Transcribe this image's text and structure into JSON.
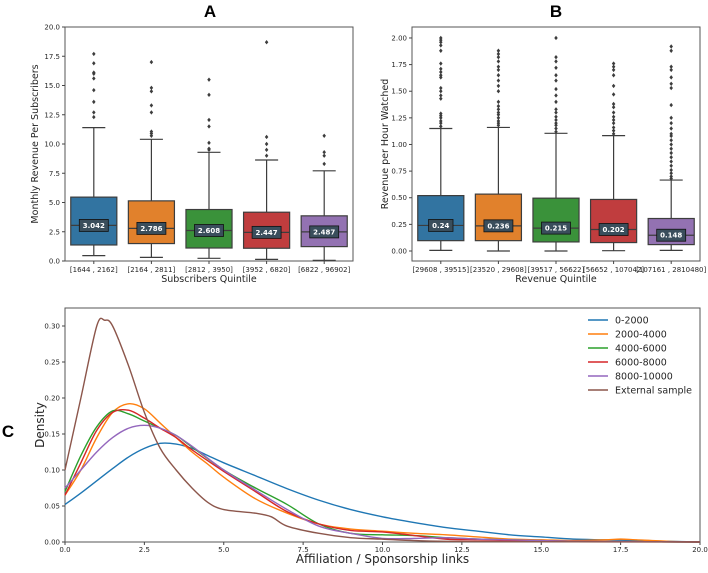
{
  "chart_data": [
    {
      "type": "boxplot",
      "panel_label": "A",
      "xlabel": "Subscribers Quintile",
      "ylabel": "Monthly Revenue Per Subscribers",
      "ylim": [
        0,
        20
      ],
      "yticks": [
        "0.0",
        "2.5",
        "5.0",
        "7.5",
        "10.0",
        "12.5",
        "15.0",
        "17.5",
        "20.0"
      ],
      "ytick_values": [
        0,
        2.5,
        5,
        7.5,
        10,
        12.5,
        15,
        17.5,
        20
      ],
      "categories": [
        "[1644 , 2162]",
        "[2164 , 2811]",
        "[2812 , 3950]",
        "[3952 , 6820]",
        "[6822 , 96902]"
      ],
      "median_labels": [
        "3.042",
        "2.786",
        "2.608",
        "2.447",
        "2.487"
      ],
      "colors": [
        "#3274a1",
        "#e1812c",
        "#3a923a",
        "#c03d3e",
        "#9372b2"
      ],
      "boxes": [
        {
          "whislo": 0.46,
          "q1": 1.37,
          "med": 3.042,
          "q3": 5.46,
          "whishi": 11.4,
          "fliers": [
            12.3,
            12.7,
            13.6,
            14.6,
            15.6,
            16.0,
            16.1,
            16.9,
            17.7
          ]
        },
        {
          "whislo": 0.31,
          "q1": 1.49,
          "med": 2.786,
          "q3": 5.14,
          "whishi": 10.4,
          "fliers": [
            10.7,
            10.9,
            11.06,
            12.7,
            13.3,
            14.5,
            14.8,
            17.0
          ]
        },
        {
          "whislo": 0.23,
          "q1": 1.11,
          "med": 2.608,
          "q3": 4.4,
          "whishi": 9.29,
          "fliers": [
            9.5,
            9.6,
            10.1,
            11.5,
            12.06,
            14.2,
            15.5
          ]
        },
        {
          "whislo": 0.14,
          "q1": 1.09,
          "med": 2.447,
          "q3": 4.17,
          "whishi": 8.63,
          "fliers": [
            9.0,
            9.5,
            10.0,
            10.6,
            18.7
          ]
        },
        {
          "whislo": 0.06,
          "q1": 1.23,
          "med": 2.487,
          "q3": 3.86,
          "whishi": 7.71,
          "fliers": [
            8.3,
            9.0,
            9.3,
            10.7
          ]
        }
      ]
    },
    {
      "type": "boxplot",
      "panel_label": "B",
      "xlabel": "Revenue Quintile",
      "ylabel": "Revenue per Hour Watched",
      "ylim": [
        -0.094,
        2.103
      ],
      "yticks": [
        "0.00",
        "0.25",
        "0.50",
        "0.75",
        "1.00",
        "1.25",
        "1.50",
        "1.75",
        "2.00"
      ],
      "ytick_values": [
        0,
        0.25,
        0.5,
        0.75,
        1,
        1.25,
        1.5,
        1.75,
        2
      ],
      "categories": [
        "[29608 , 39515]",
        "[23520 , 29608]",
        "[39517 , 56622]",
        "[56652 , 107042]",
        "[107161 , 2810480]"
      ],
      "median_labels": [
        "0.24",
        "0.236",
        "0.215",
        "0.202",
        "0.148"
      ],
      "colors": [
        "#3274a1",
        "#e1812c",
        "#3a923a",
        "#c03d3e",
        "#9372b2"
      ],
      "boxes": [
        {
          "whislo": 0.006,
          "q1": 0.097,
          "med": 0.24,
          "q3": 0.52,
          "whishi": 1.15,
          "fliers": [
            1.17,
            1.2,
            1.22,
            1.25,
            1.27,
            1.29,
            1.43,
            1.46,
            1.5,
            1.53,
            1.63,
            1.65,
            1.68,
            1.71,
            1.76,
            1.88,
            1.93,
            1.96,
            1.98,
            2.0
          ]
        },
        {
          "whislo": 0.0,
          "q1": 0.097,
          "med": 0.236,
          "q3": 0.534,
          "whishi": 1.16,
          "fliers": [
            1.18,
            1.2,
            1.22,
            1.25,
            1.28,
            1.3,
            1.33,
            1.36,
            1.4,
            1.5,
            1.55,
            1.6,
            1.65,
            1.7,
            1.73,
            1.78,
            1.82,
            1.85,
            1.88
          ]
        },
        {
          "whislo": 0.0,
          "q1": 0.085,
          "med": 0.215,
          "q3": 0.496,
          "whishi": 1.105,
          "fliers": [
            1.12,
            1.15,
            1.18,
            1.2,
            1.23,
            1.26,
            1.3,
            1.33,
            1.4,
            1.46,
            1.52,
            1.6,
            1.65,
            1.72,
            1.78,
            1.82,
            2.0
          ]
        },
        {
          "whislo": 0.003,
          "q1": 0.079,
          "med": 0.202,
          "q3": 0.484,
          "whishi": 1.083,
          "fliers": [
            1.1,
            1.13,
            1.16,
            1.2,
            1.23,
            1.26,
            1.3,
            1.35,
            1.38,
            1.47,
            1.55,
            1.65,
            1.7,
            1.73,
            1.76
          ]
        },
        {
          "whislo": 0.006,
          "q1": 0.06,
          "med": 0.148,
          "q3": 0.305,
          "whishi": 0.666,
          "fliers": [
            0.68,
            0.7,
            0.73,
            0.76,
            0.8,
            0.84,
            0.88,
            0.92,
            0.96,
            1.0,
            1.04,
            1.08,
            1.1,
            1.15,
            1.2,
            1.25,
            1.37,
            1.53,
            1.57,
            1.63,
            1.7,
            1.73,
            1.88,
            1.92
          ]
        }
      ]
    },
    {
      "type": "line",
      "panel_label": "C",
      "xlabel": "Affiliation / Sponsorship links",
      "ylabel": "Density",
      "xlim": [
        0,
        20
      ],
      "ylim": [
        0,
        0.325
      ],
      "xticks": [
        "0.0",
        "2.5",
        "5.0",
        "7.5",
        "10.0",
        "12.5",
        "15.0",
        "17.5",
        "20.0"
      ],
      "xtick_values": [
        0,
        2.5,
        5,
        7.5,
        10,
        12.5,
        15,
        17.5,
        20
      ],
      "yticks": [
        "0.00",
        "0.05",
        "0.10",
        "0.15",
        "0.20",
        "0.25",
        "0.30"
      ],
      "ytick_values": [
        0,
        0.05,
        0.1,
        0.15,
        0.2,
        0.25,
        0.3
      ],
      "legend_position": "top-right",
      "series": [
        {
          "name": "0-2000",
          "color": "#1f77b4",
          "x": [
            0,
            0.5,
            1,
            1.5,
            2,
            2.5,
            3,
            3.5,
            4,
            4.5,
            5,
            6,
            7,
            8,
            9,
            10,
            11,
            12,
            13,
            14,
            15,
            16,
            17,
            18,
            19,
            20
          ],
          "y": [
            0.052,
            0.068,
            0.085,
            0.102,
            0.118,
            0.13,
            0.137,
            0.136,
            0.13,
            0.12,
            0.11,
            0.092,
            0.074,
            0.058,
            0.045,
            0.035,
            0.027,
            0.02,
            0.015,
            0.01,
            0.007,
            0.004,
            0.003,
            0.002,
            0.001,
            0
          ]
        },
        {
          "name": "2000-4000",
          "color": "#ff7f0e",
          "x": [
            0,
            0.5,
            1,
            1.5,
            2,
            2.5,
            3,
            3.5,
            4,
            4.5,
            5,
            6,
            7,
            8,
            9,
            10,
            11,
            12,
            13,
            14,
            15,
            16,
            17,
            17.5,
            18,
            19,
            20
          ],
          "y": [
            0.065,
            0.1,
            0.145,
            0.18,
            0.192,
            0.185,
            0.165,
            0.145,
            0.125,
            0.108,
            0.09,
            0.06,
            0.04,
            0.025,
            0.018,
            0.015,
            0.012,
            0.01,
            0.007,
            0.004,
            0.003,
            0.002,
            0.003,
            0.004,
            0.003,
            0.001,
            0
          ]
        },
        {
          "name": "4000-6000",
          "color": "#2ca02c",
          "x": [
            0,
            0.5,
            1,
            1.5,
            2,
            2.5,
            3,
            3.5,
            4,
            5,
            6,
            7,
            8,
            9,
            10,
            11,
            12,
            13,
            14,
            15,
            16,
            18,
            20
          ],
          "y": [
            0.07,
            0.12,
            0.16,
            0.182,
            0.178,
            0.168,
            0.158,
            0.148,
            0.132,
            0.1,
            0.075,
            0.052,
            0.025,
            0.012,
            0.01,
            0.009,
            0.006,
            0.004,
            0.003,
            0.002,
            0.001,
            0.0005,
            0
          ]
        },
        {
          "name": "6000-8000",
          "color": "#d62728",
          "x": [
            0,
            0.5,
            1,
            1.5,
            2,
            2.5,
            3,
            3.5,
            4,
            5,
            6,
            7,
            8,
            9,
            10,
            11,
            12,
            13,
            14,
            15,
            16,
            18,
            20
          ],
          "y": [
            0.065,
            0.11,
            0.155,
            0.18,
            0.183,
            0.172,
            0.158,
            0.145,
            0.128,
            0.098,
            0.07,
            0.042,
            0.025,
            0.016,
            0.014,
            0.009,
            0.004,
            0.003,
            0.002,
            0.002,
            0.001,
            0.0005,
            0
          ]
        },
        {
          "name": "8000-10000",
          "color": "#9467bd",
          "x": [
            0,
            0.5,
            1,
            1.5,
            2,
            2.5,
            3,
            3.5,
            4,
            5,
            6,
            7,
            8,
            9,
            10,
            11,
            12,
            13,
            14,
            15,
            16,
            18,
            20
          ],
          "y": [
            0.075,
            0.1,
            0.125,
            0.145,
            0.158,
            0.162,
            0.158,
            0.148,
            0.133,
            0.1,
            0.072,
            0.045,
            0.022,
            0.012,
            0.005,
            0.005,
            0.006,
            0.004,
            0.003,
            0.002,
            0.001,
            0.0005,
            0
          ]
        },
        {
          "name": "External sample",
          "color": "#8c564b",
          "x": [
            0,
            0.5,
            1,
            1.25,
            1.5,
            2,
            2.5,
            3,
            3.5,
            4,
            4.5,
            5,
            6,
            6.5,
            7,
            8,
            9,
            10,
            11,
            12,
            14,
            16,
            20
          ],
          "y": [
            0.1,
            0.2,
            0.3,
            0.308,
            0.3,
            0.245,
            0.18,
            0.13,
            0.1,
            0.075,
            0.055,
            0.045,
            0.04,
            0.035,
            0.022,
            0.012,
            0.006,
            0.004,
            0.002,
            0.001,
            0.0005,
            0.0002,
            0
          ]
        }
      ]
    }
  ]
}
